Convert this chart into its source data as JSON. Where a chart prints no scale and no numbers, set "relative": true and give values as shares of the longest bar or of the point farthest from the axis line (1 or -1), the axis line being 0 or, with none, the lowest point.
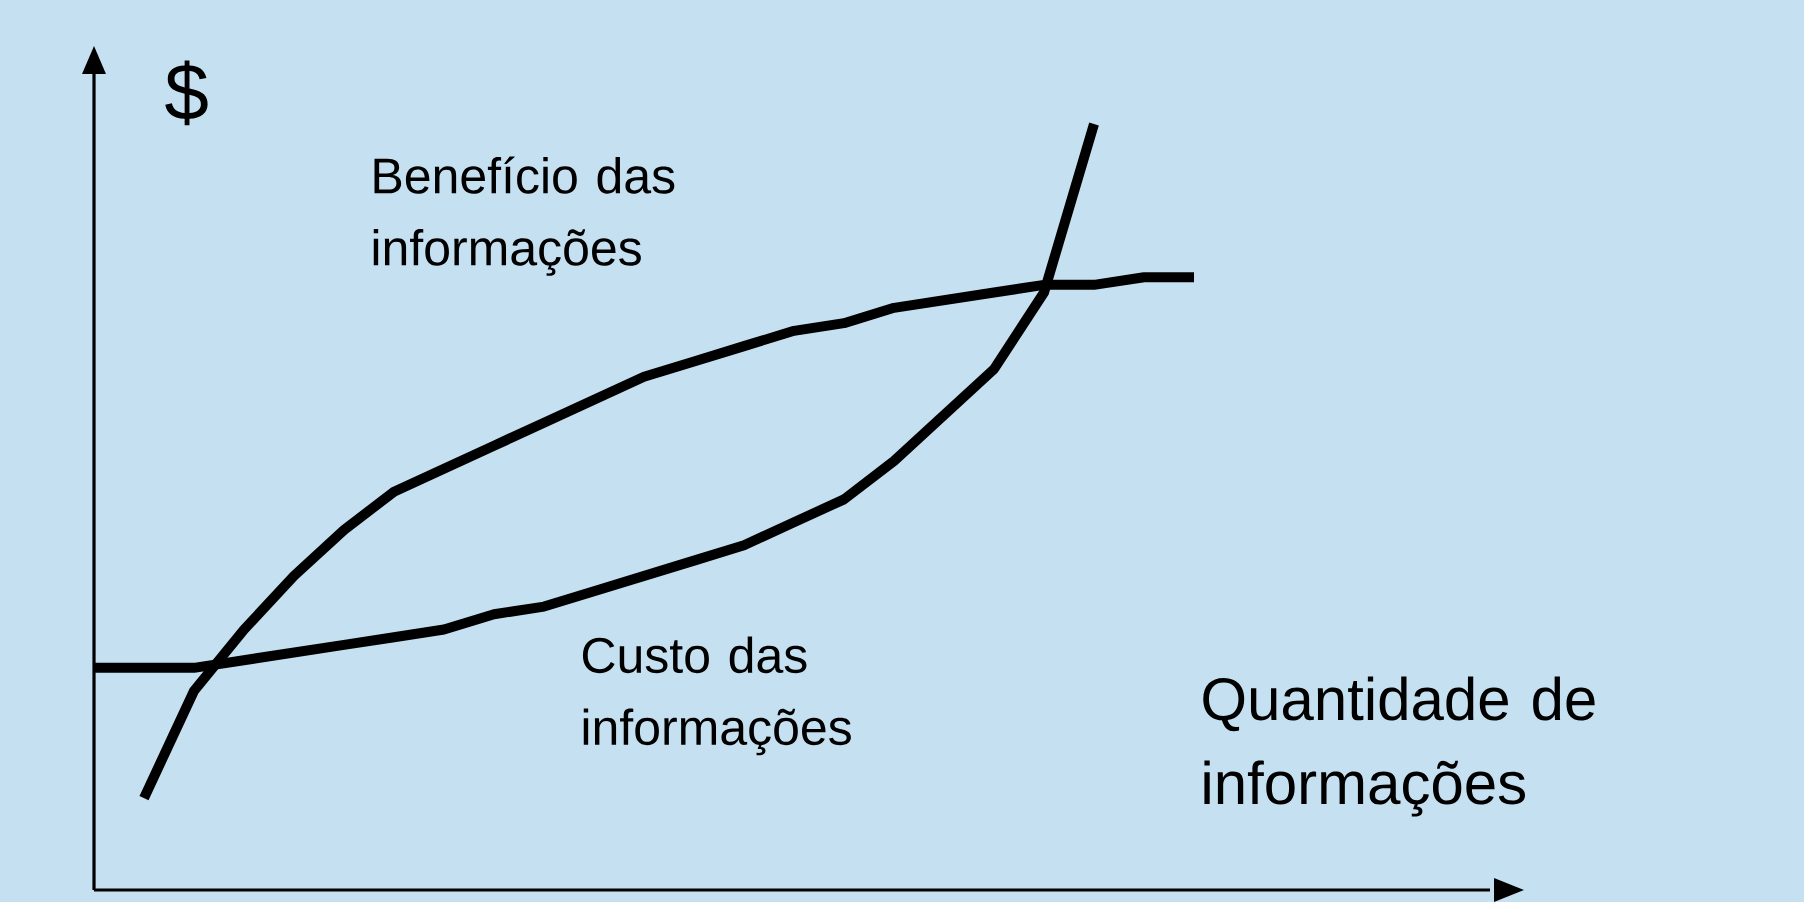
{
  "chart_data": {
    "type": "line",
    "relative": true,
    "ylabel": "$",
    "xlabel": "Quantidade de informações",
    "tick_labels": false,
    "marker": "none",
    "line_style": "solid",
    "categories": [
      null,
      null,
      null,
      null,
      null,
      null,
      null,
      null,
      null,
      null,
      null,
      null,
      null,
      null,
      null,
      null,
      null,
      null,
      null,
      null,
      null,
      null,
      null
    ],
    "series": [
      {
        "name": "Benefício das informações",
        "color": "#000000",
        "values": [
          null,
          0.12,
          0.26,
          0.34,
          0.41,
          0.47,
          0.52,
          0.55,
          0.58,
          0.61,
          0.64,
          0.67,
          0.69,
          0.71,
          0.73,
          0.74,
          0.76,
          0.77,
          0.78,
          0.79,
          0.79,
          0.8,
          0.8
        ]
      },
      {
        "name": "Custo das informações",
        "color": "#000000",
        "values": [
          0.29,
          0.29,
          0.29,
          0.3,
          0.31,
          0.32,
          0.33,
          0.34,
          0.36,
          0.37,
          0.39,
          0.41,
          0.43,
          0.45,
          0.48,
          0.51,
          0.56,
          0.62,
          0.68,
          0.78,
          1,
          null,
          null
        ]
      }
    ]
  }
}
